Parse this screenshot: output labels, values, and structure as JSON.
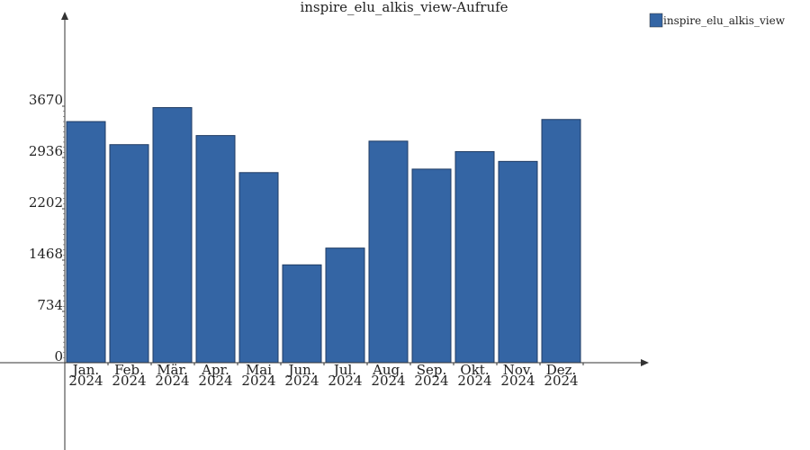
{
  "chart_data": {
    "type": "bar",
    "title": "inspire_elu_alkis_view-Aufrufe",
    "categories": [
      [
        "Jan.",
        "2024"
      ],
      [
        "Feb.",
        "2024"
      ],
      [
        "Mär.",
        "2024"
      ],
      [
        "Apr.",
        "2024"
      ],
      [
        "Mai",
        "2024"
      ],
      [
        "Jun.",
        "2024"
      ],
      [
        "Jul.",
        "2024"
      ],
      [
        "Aug.",
        "2024"
      ],
      [
        "Sep.",
        "2024"
      ],
      [
        "Okt.",
        "2024"
      ],
      [
        "Nov.",
        "2024"
      ],
      [
        "Dez.",
        "2024"
      ]
    ],
    "series": [
      {
        "name": "inspire_elu_alkis_view",
        "color": "#3465a4",
        "values": [
          3450,
          3120,
          3650,
          3250,
          2720,
          1400,
          1640,
          3170,
          2770,
          3020,
          2880,
          3480
        ]
      }
    ],
    "yticks": [
      0,
      734,
      1468,
      2202,
      2936,
      3670
    ],
    "ylim": [
      0,
      3670
    ],
    "xlabel": "",
    "ylabel": "",
    "grid": false,
    "legend_position": "top-right"
  }
}
